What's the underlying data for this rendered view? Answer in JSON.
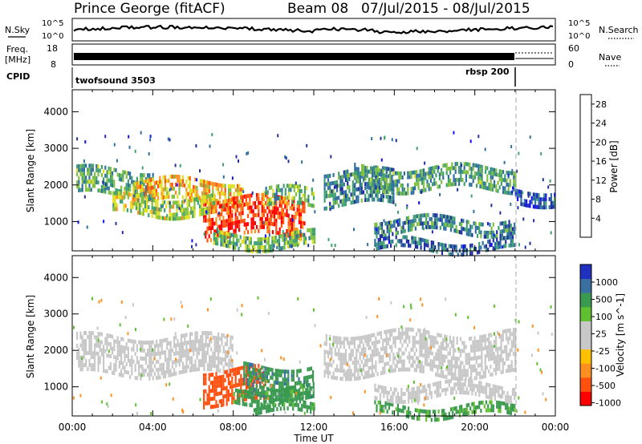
{
  "header": {
    "station": "Prince George (fitACF)",
    "beam": "Beam 08",
    "dates": "07/Jul/2015 - 08/Jul/2015"
  },
  "left_labels": {
    "nsky": "N.Sky",
    "freq": "Freq.",
    "freq_unit": "[MHz]",
    "cpid": "CPID"
  },
  "right_labels": {
    "nsearch": "N.Search",
    "nave": "Nave"
  },
  "noise_panel": {
    "ticks_left": [
      "10^5",
      "10^0"
    ],
    "ticks_right": [
      "10^5",
      "10^0"
    ]
  },
  "freq_panel": {
    "ticks_left": [
      "18",
      "8"
    ],
    "ticks_right": [
      "60",
      "0"
    ]
  },
  "cpid_panel": {
    "programs": [
      {
        "name": "twofsound 3503",
        "start_hour": 0
      },
      {
        "name": "rbsp 200",
        "start_hour": 22
      }
    ]
  },
  "x_axis": {
    "label": "Time UT",
    "ticks": [
      "00:00",
      "04:00",
      "08:00",
      "12:00",
      "16:00",
      "20:00",
      "00:00"
    ]
  },
  "colors": {
    "power": [
      "#1010ff",
      "#2030a0",
      "#3070a0",
      "#40a070",
      "#80c040",
      "#e0e020",
      "#ff9020",
      "#ff5010",
      "#ff0000"
    ],
    "velocity": [
      "#ff0000",
      "#ff5010",
      "#ff9020",
      "#ffc000",
      "#c8c8c8",
      "#c8c8c8",
      "#60c030",
      "#3a9a50",
      "#3a70a0",
      "#2030c0"
    ]
  },
  "chart_data": [
    {
      "type": "heatmap",
      "title": "Power",
      "ylabel": "Slant Range [km]",
      "xlabel": "",
      "y_ticks": [
        "1000",
        "2000",
        "3000",
        "4000"
      ],
      "ylim": [
        200,
        4600
      ],
      "xlim_hours": [
        0,
        24
      ],
      "colorbar": {
        "label": "Power [dB]",
        "ticks": [
          "4",
          "8",
          "12",
          "16",
          "20",
          "24",
          "28"
        ],
        "range": [
          0,
          30
        ]
      },
      "bands": [
        {
          "t0": 0.2,
          "t1": 4.0,
          "r0": 1750,
          "r1": 2450,
          "value": 12
        },
        {
          "t0": 3.0,
          "t1": 8.5,
          "r0": 1600,
          "r1": 2150,
          "value": 20
        },
        {
          "t0": 6.5,
          "t1": 11.5,
          "r0": 650,
          "r1": 1650,
          "value": 26
        },
        {
          "t0": 2.0,
          "t1": 7.0,
          "r0": 1250,
          "r1": 1700,
          "value": 16
        },
        {
          "t0": 7.0,
          "t1": 12.0,
          "r0": 300,
          "r1": 700,
          "value": 14
        },
        {
          "t0": 9.5,
          "t1": 12.0,
          "r0": 1400,
          "r1": 1900,
          "value": 14
        },
        {
          "t0": 12.5,
          "t1": 16.0,
          "r0": 1500,
          "r1": 2400,
          "value": 10
        },
        {
          "t0": 14.0,
          "t1": 22.0,
          "r0": 1850,
          "r1": 2500,
          "value": 12
        },
        {
          "t0": 15.0,
          "t1": 22.0,
          "r0": 700,
          "r1": 1100,
          "value": 10
        },
        {
          "t0": 15.0,
          "t1": 22.0,
          "r0": 250,
          "r1": 500,
          "value": 8
        },
        {
          "t0": 22.0,
          "t1": 24.0,
          "r0": 1500,
          "r1": 1900,
          "value": 6
        }
      ]
    },
    {
      "type": "heatmap",
      "title": "Velocity",
      "ylabel": "Slant Range [km]",
      "xlabel": "Time UT",
      "y_ticks": [
        "1000",
        "2000",
        "3000",
        "4000"
      ],
      "ylim": [
        200,
        4600
      ],
      "xlim_hours": [
        0,
        24
      ],
      "colorbar": {
        "label": "Velocity [m s^-1]",
        "ticks": [
          "1000",
          "500",
          "100",
          "25",
          "-25",
          "-100",
          "-500",
          "-1000"
        ],
        "range": [
          -1000,
          1000
        ]
      },
      "bands": [
        {
          "t0": 0.2,
          "t1": 8.0,
          "r0": 1400,
          "r1": 2400,
          "value": 0
        },
        {
          "t0": 12.5,
          "t1": 22.0,
          "r0": 1300,
          "r1": 2500,
          "value": 0
        },
        {
          "t0": 6.5,
          "t1": 9.5,
          "r0": 600,
          "r1": 1500,
          "value": -300
        },
        {
          "t0": 8.5,
          "t1": 12.0,
          "r0": 800,
          "r1": 1600,
          "value": 400
        },
        {
          "t0": 8.0,
          "t1": 12.0,
          "r0": 600,
          "r1": 1000,
          "value": 150
        },
        {
          "t0": 9.0,
          "t1": 12.0,
          "r0": 300,
          "r1": 550,
          "value": 150
        },
        {
          "t0": 15.0,
          "t1": 22.0,
          "r0": 250,
          "r1": 500,
          "value": 120
        },
        {
          "t0": 15.0,
          "t1": 22.0,
          "r0": 700,
          "r1": 1100,
          "value": 0
        }
      ]
    }
  ]
}
